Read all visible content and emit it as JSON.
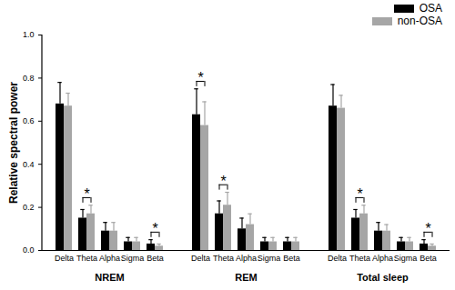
{
  "chart_data": {
    "type": "bar",
    "ylabel": "Relative spectral power",
    "groups": [
      "NREM",
      "REM",
      "Total sleep"
    ],
    "categories": [
      "Delta",
      "Theta",
      "Alpha",
      "Sigma",
      "Beta"
    ],
    "series": [
      {
        "name": "OSA",
        "color": "#000000",
        "values": [
          [
            0.68,
            0.15,
            0.09,
            0.04,
            0.03
          ],
          [
            0.63,
            0.17,
            0.1,
            0.04,
            0.04
          ],
          [
            0.67,
            0.15,
            0.09,
            0.04,
            0.03
          ]
        ],
        "errors": [
          [
            0.1,
            0.04,
            0.04,
            0.02,
            0.02
          ],
          [
            0.12,
            0.06,
            0.05,
            0.02,
            0.02
          ],
          [
            0.1,
            0.04,
            0.04,
            0.02,
            0.02
          ]
        ]
      },
      {
        "name": "non-OSA",
        "color": "#a6a6a6",
        "values": [
          [
            0.67,
            0.17,
            0.09,
            0.04,
            0.02
          ],
          [
            0.58,
            0.21,
            0.12,
            0.04,
            0.04
          ],
          [
            0.66,
            0.17,
            0.09,
            0.04,
            0.02
          ]
        ],
        "errors": [
          [
            0.06,
            0.04,
            0.04,
            0.02,
            0.01
          ],
          [
            0.11,
            0.06,
            0.05,
            0.02,
            0.02
          ],
          [
            0.06,
            0.04,
            0.03,
            0.02,
            0.01
          ]
        ]
      }
    ],
    "annotations": [
      {
        "text": "*",
        "group": "NREM",
        "category": "Theta"
      },
      {
        "text": "*",
        "group": "NREM",
        "category": "Beta"
      },
      {
        "text": "*",
        "group": "REM",
        "category": "Delta"
      },
      {
        "text": "*",
        "group": "REM",
        "category": "Theta"
      },
      {
        "text": "*",
        "group": "Total sleep",
        "category": "Theta"
      },
      {
        "text": "*",
        "group": "Total sleep",
        "category": "Beta"
      }
    ],
    "ylim": [
      0,
      1
    ],
    "yticks": [
      {
        "value": 0,
        "label": "0.0"
      },
      {
        "value": 0.2,
        "label": "0.2"
      },
      {
        "value": 0.4,
        "label": "0.4"
      },
      {
        "value": 0.6,
        "label": "0.6"
      },
      {
        "value": 0.8,
        "label": "0.8"
      },
      {
        "value": 1,
        "label": "1.0"
      }
    ],
    "legend": "top-right"
  }
}
